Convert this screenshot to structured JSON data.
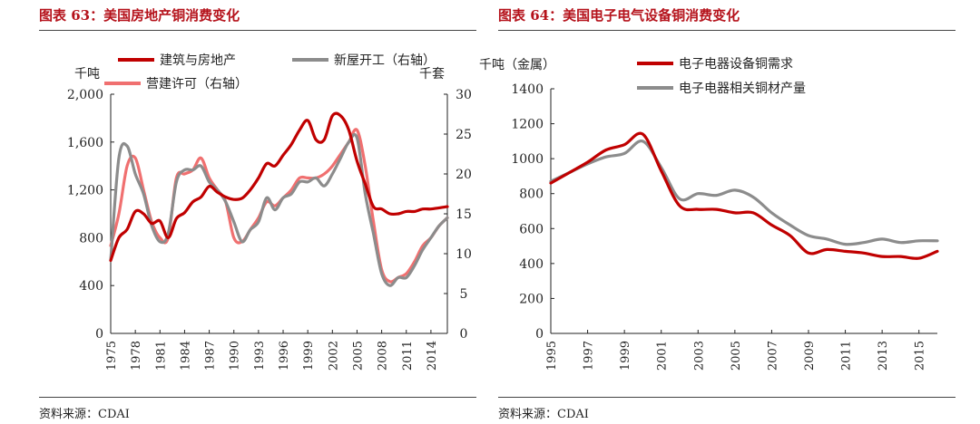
{
  "charts": [
    {
      "title": "图表 63：美国房地产铜消费变化",
      "source": "资料来源：CDAI"
    },
    {
      "title": "图表 64：美国电子电气设备铜消费变化",
      "source": "资料来源：CDAI"
    }
  ],
  "chart_data": [
    {
      "type": "line",
      "title": "图表 63：美国房地产铜消费变化",
      "left_axis_unit": "千吨",
      "right_axis_unit": "千套",
      "ylim": [
        0,
        2000
      ],
      "y2lim": [
        0,
        30
      ],
      "yticks": [
        "0",
        "400",
        "800",
        "1,200",
        "1,600",
        "2,000"
      ],
      "y2ticks": [
        "0",
        "5",
        "10",
        "15",
        "20",
        "25",
        "30"
      ],
      "xticks": [
        "1975",
        "1978",
        "1981",
        "1984",
        "1987",
        "1990",
        "1993",
        "1996",
        "1999",
        "2002",
        "2005",
        "2008",
        "2011",
        "2014"
      ],
      "x": [
        1975,
        1976,
        1977,
        1978,
        1979,
        1980,
        1981,
        1982,
        1983,
        1984,
        1985,
        1986,
        1987,
        1988,
        1989,
        1990,
        1991,
        1992,
        1993,
        1994,
        1995,
        1996,
        1997,
        1998,
        1999,
        2000,
        2001,
        2002,
        2003,
        2004,
        2005,
        2006,
        2007,
        2008,
        2009,
        2010,
        2011,
        2012,
        2013,
        2014,
        2015,
        2016
      ],
      "legend_position": "top",
      "grid": false,
      "series": [
        {
          "name": "建筑与房地产",
          "axis": "left",
          "color": "#c00000",
          "values": [
            610,
            800,
            870,
            1020,
            1000,
            920,
            940,
            800,
            960,
            1010,
            1100,
            1140,
            1230,
            1180,
            1140,
            1120,
            1130,
            1200,
            1300,
            1420,
            1400,
            1490,
            1580,
            1700,
            1780,
            1620,
            1620,
            1820,
            1820,
            1700,
            1440,
            1250,
            1060,
            1040,
            1000,
            1000,
            1020,
            1020,
            1040,
            1040,
            1050,
            1060
          ]
        },
        {
          "name": "新屋开工（右轴）",
          "axis": "right",
          "color": "#8c8c8c",
          "values": [
            9.2,
            22.0,
            23.5,
            20.0,
            17.5,
            13.5,
            11.5,
            12.5,
            19.0,
            20.5,
            20.5,
            21.0,
            19.0,
            18.0,
            16.5,
            14.0,
            11.5,
            13.0,
            14.0,
            17.0,
            15.5,
            17.0,
            17.5,
            19.0,
            19.0,
            19.5,
            18.5,
            20.0,
            22.0,
            24.0,
            24.5,
            17.5,
            12.5,
            7.5,
            6.0,
            7.0,
            7.0,
            8.5,
            10.5,
            12.0,
            13.5,
            14.5
          ]
        },
        {
          "name": "营建许可（右轴）",
          "axis": "right",
          "color": "#f07070",
          "values": [
            11.0,
            15.0,
            21.0,
            22.0,
            18.0,
            14.0,
            12.0,
            12.0,
            19.5,
            20.0,
            20.5,
            22.0,
            19.5,
            18.0,
            16.5,
            12.0,
            11.5,
            13.0,
            14.5,
            16.5,
            16.0,
            17.0,
            18.0,
            19.5,
            19.5,
            19.5,
            20.0,
            21.0,
            22.5,
            24.0,
            25.5,
            21.0,
            14.0,
            8.0,
            6.5,
            7.0,
            7.5,
            9.0,
            11.0,
            12.0,
            13.5,
            14.5
          ]
        }
      ]
    },
    {
      "type": "line",
      "title": "图表 64：美国电子电气设备铜消费变化",
      "left_axis_unit": "千吨（金属）",
      "ylim": [
        0,
        1400
      ],
      "yticks": [
        "0",
        "200",
        "400",
        "600",
        "800",
        "1000",
        "1200",
        "1400"
      ],
      "xticks": [
        "1995",
        "1997",
        "1999",
        "2001",
        "2003",
        "2005",
        "2007",
        "2009",
        "2011",
        "2013",
        "2015"
      ],
      "x": [
        1995,
        1996,
        1997,
        1998,
        1999,
        2000,
        2001,
        2002,
        2003,
        2004,
        2005,
        2006,
        2007,
        2008,
        2009,
        2010,
        2011,
        2012,
        2013,
        2014,
        2015,
        2016
      ],
      "legend_position": "top",
      "grid": false,
      "series": [
        {
          "name": "电子电器设备铜需求",
          "axis": "left",
          "color": "#c00000",
          "values": [
            860,
            920,
            980,
            1050,
            1080,
            1140,
            930,
            730,
            710,
            710,
            690,
            690,
            620,
            560,
            460,
            480,
            470,
            460,
            440,
            440,
            430,
            470
          ]
        },
        {
          "name": "电子电器相关铜材产量",
          "axis": "left",
          "color": "#8c8c8c",
          "values": [
            870,
            920,
            970,
            1010,
            1030,
            1100,
            950,
            770,
            800,
            790,
            820,
            780,
            690,
            620,
            560,
            540,
            510,
            520,
            540,
            520,
            530,
            530
          ]
        }
      ]
    }
  ]
}
